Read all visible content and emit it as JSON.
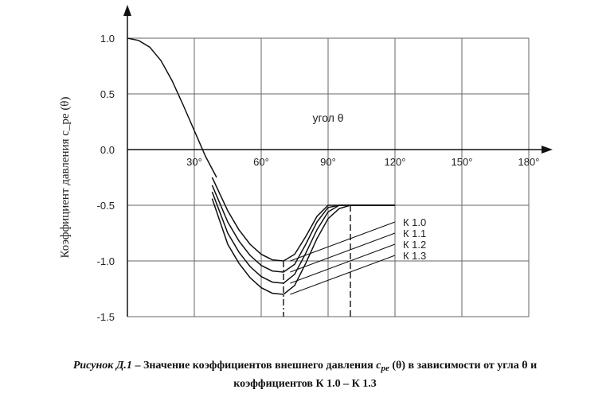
{
  "chart_data": {
    "type": "line",
    "ylabel": "Коэффициент давления c_pe (θ)",
    "xlabel": "угол θ",
    "xlim": [
      0,
      180
    ],
    "ylim": [
      -1.5,
      1.0
    ],
    "x_ticks": [
      30,
      60,
      90,
      120,
      150,
      180
    ],
    "x_tick_labels": [
      "30°",
      "60°",
      "90°",
      "120°",
      "150°",
      "180°"
    ],
    "y_ticks": [
      1.0,
      0.5,
      0.0,
      -0.5,
      -1.0,
      -1.5
    ],
    "y_tick_labels": [
      "1.0",
      "0.5",
      "0.0",
      "-0.5",
      "-1.0",
      "-1.5"
    ],
    "grid": true,
    "common_curve": {
      "x": [
        0,
        5,
        10,
        15,
        20,
        25,
        30,
        35,
        40
      ],
      "y": [
        1.0,
        0.98,
        0.92,
        0.8,
        0.62,
        0.4,
        0.17,
        -0.06,
        -0.25
      ]
    },
    "series": [
      {
        "name": "К 1.0",
        "x": [
          38,
          45,
          50,
          55,
          60,
          65,
          70,
          75,
          80,
          85,
          90,
          95,
          100,
          105,
          110,
          115,
          120
        ],
        "y": [
          -0.25,
          -0.55,
          -0.72,
          -0.85,
          -0.94,
          -0.99,
          -1.0,
          -0.94,
          -0.78,
          -0.6,
          -0.5,
          -0.5,
          -0.5,
          -0.5,
          -0.5,
          -0.5,
          -0.5
        ]
      },
      {
        "name": "К 1.1",
        "x": [
          38,
          45,
          50,
          55,
          60,
          65,
          70,
          75,
          80,
          85,
          90,
          95,
          100,
          105,
          110,
          115,
          120
        ],
        "y": [
          -0.32,
          -0.65,
          -0.82,
          -0.95,
          -1.04,
          -1.09,
          -1.1,
          -1.03,
          -0.85,
          -0.65,
          -0.52,
          -0.5,
          -0.5,
          -0.5,
          -0.5,
          -0.5,
          -0.5
        ]
      },
      {
        "name": "К 1.2",
        "x": [
          38,
          45,
          50,
          55,
          60,
          65,
          70,
          75,
          80,
          85,
          90,
          95,
          100,
          105,
          110,
          115,
          120
        ],
        "y": [
          -0.38,
          -0.75,
          -0.92,
          -1.05,
          -1.14,
          -1.19,
          -1.2,
          -1.12,
          -0.93,
          -0.72,
          -0.56,
          -0.5,
          -0.5,
          -0.5,
          -0.5,
          -0.5,
          -0.5
        ]
      },
      {
        "name": "К 1.3",
        "x": [
          38,
          45,
          50,
          55,
          60,
          65,
          70,
          75,
          80,
          85,
          90,
          95,
          100,
          105,
          110,
          115,
          120
        ],
        "y": [
          -0.44,
          -0.85,
          -1.02,
          -1.15,
          -1.24,
          -1.29,
          -1.3,
          -1.22,
          -1.02,
          -0.8,
          -0.62,
          -0.53,
          -0.5,
          -0.5,
          -0.5,
          -0.5,
          -0.5
        ]
      }
    ],
    "leaders": [
      {
        "series": "К 1.0",
        "from": [
          73,
          -1.0
        ],
        "to": [
          120,
          -0.65
        ]
      },
      {
        "series": "К 1.1",
        "from": [
          73,
          -1.1
        ],
        "to": [
          120,
          -0.75
        ]
      },
      {
        "series": "К 1.2",
        "from": [
          73,
          -1.2
        ],
        "to": [
          120,
          -0.85
        ]
      },
      {
        "series": "К 1.3",
        "from": [
          73,
          -1.3
        ],
        "to": [
          120,
          -0.95
        ]
      }
    ],
    "markers": [
      {
        "x": 70,
        "y_from": -1.0,
        "y_to": -1.5,
        "style": "dash-dot"
      },
      {
        "x": 100,
        "y_from": -0.5,
        "y_to": -1.5,
        "style": "dashed"
      }
    ]
  },
  "caption": {
    "figure_number": "Рисунок Д.1",
    "text_before_symbol": " – Значение коэффициентов внешнего давления ",
    "symbol_c": "c",
    "symbol_subscript": "pe",
    "text_after_symbol": " (θ) в зависимости от угла θ и",
    "line2": "коэффициентов К 1.0 – К 1.3"
  }
}
